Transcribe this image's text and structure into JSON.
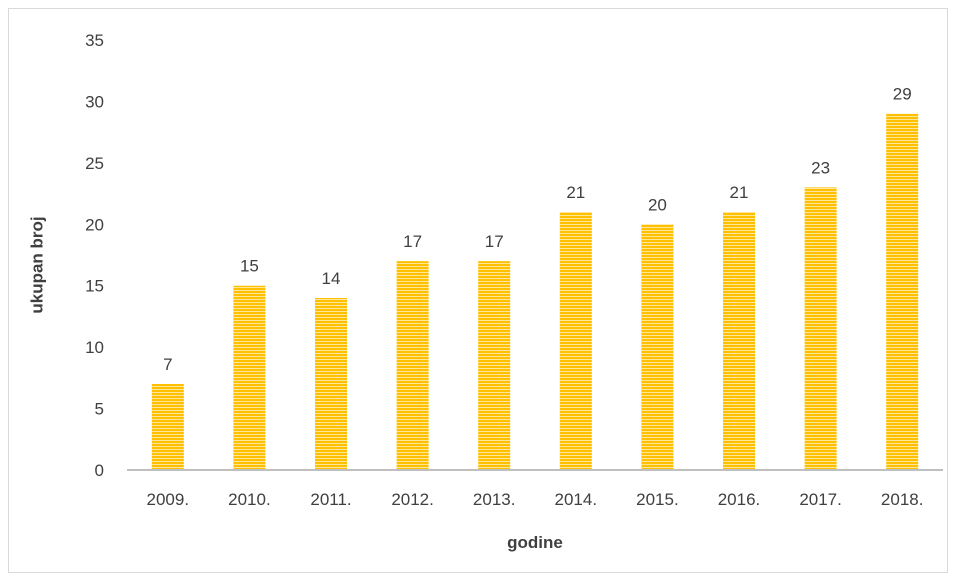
{
  "chart_data": {
    "type": "bar",
    "title": "",
    "xlabel": "godine",
    "ylabel": "ukupan broj",
    "categories": [
      "2009.",
      "2010.",
      "2011.",
      "2012.",
      "2013.",
      "2014.",
      "2015.",
      "2016.",
      "2017.",
      "2018."
    ],
    "values": [
      7,
      15,
      14,
      17,
      17,
      21,
      20,
      21,
      23,
      29
    ],
    "ylim": [
      0,
      35
    ],
    "yticks": [
      "0",
      "5",
      "10",
      "15",
      "20",
      "25",
      "30",
      "35"
    ],
    "grid": false,
    "legend": false,
    "data_labels": true,
    "colors": {
      "bar": "#ffc000",
      "bar_stripe": "#ffe699",
      "axis": "#bfbfbf",
      "text": "#404040",
      "border": "#d9d9d9"
    }
  }
}
